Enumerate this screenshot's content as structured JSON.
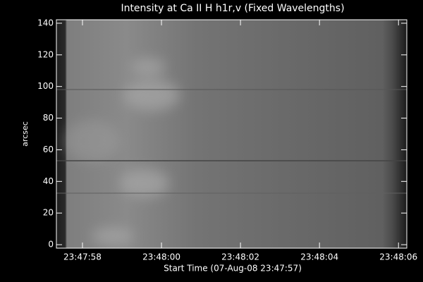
{
  "chart_data": {
    "type": "image",
    "title": "Intensity at Ca II H h1r,v (Fixed Wavelengths)",
    "x_label": "Start Time (07-Aug-08 23:47:57)",
    "y_label": "arcsec",
    "xlim": [
      0.34,
      9.21
    ],
    "xticks": [
      {
        "value": 1,
        "label": "23:47:58"
      },
      {
        "value": 3,
        "label": "23:48:00"
      },
      {
        "value": 5,
        "label": "23:48:02"
      },
      {
        "value": 7,
        "label": "23:48:04"
      },
      {
        "value": 9,
        "label": "23:48:06"
      }
    ],
    "ylim": [
      -2.2,
      142.2
    ],
    "yticks": [
      0,
      20,
      40,
      60,
      80,
      100,
      120,
      140
    ]
  }
}
